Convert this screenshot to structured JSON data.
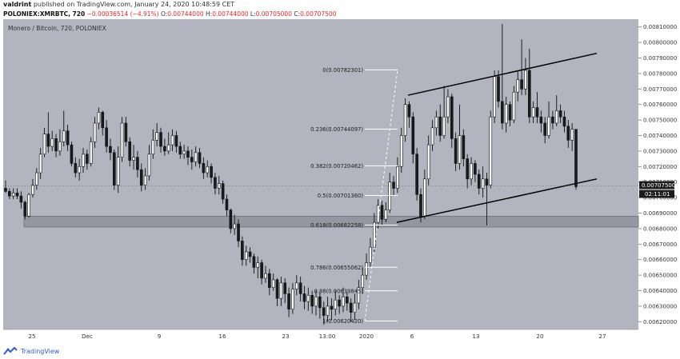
{
  "header": {
    "published": "valdrint published on TradingView.com, January 24, 2020 10:48:59 CET",
    "author": "valdrint",
    "symbol": "POLONIEX:XMRBTC, 720",
    "change": "−0.00036514 (−4.91%)",
    "o_label": "O:",
    "o_value": "0.00744000",
    "h_label": "H:",
    "h_value": "0.00744000",
    "l_label": "L:",
    "l_value": "0.00705000",
    "c_label": "C:",
    "c_value": "0.00707500"
  },
  "footer": {
    "brand": "TradingView"
  },
  "colors": {
    "background": "#b2b5bf",
    "up": "#ffffff",
    "down": "#1a1a1a",
    "zone": "#8f9199",
    "price_box": "#1c1c1c",
    "grid": "#a9acb6"
  },
  "chart_data": {
    "type": "candlestick",
    "title": "Monero / Bitcoin, 720, POLONIEX",
    "ylim": [
      0.00615,
      0.00815
    ],
    "y_ticks": [
      "0.00810000",
      "0.00800000",
      "0.00790000",
      "0.00780000",
      "0.00770000",
      "0.00760000",
      "0.00750000",
      "0.00740000",
      "0.00730000",
      "0.00720000",
      "0.00710000",
      "0.00700000",
      "0.00690000",
      "0.00680000",
      "0.00670000",
      "0.00660000",
      "0.00650000",
      "0.00640000",
      "0.00630000",
      "0.00620000"
    ],
    "x_ticks": [
      "25",
      "Dec",
      "9",
      "16",
      "23",
      "13:00",
      "2020",
      "6",
      "13",
      "20",
      "27"
    ],
    "last_price": "0.00707500",
    "countdown": "02:11:01",
    "fibonacci": [
      {
        "label": "0(0.00782301)",
        "value": 0.00782301
      },
      {
        "label": "0.236(0.00744097)",
        "value": 0.00744097
      },
      {
        "label": "0.382(0.00720462)",
        "value": 0.00720462
      },
      {
        "label": "0.5(0.00701360)",
        "value": 0.0070136
      },
      {
        "label": "0.618(0.00682258)",
        "value": 0.00682258
      },
      {
        "label": "0.786(0.00655062)",
        "value": 0.00655062
      },
      {
        "label": "0.88(0.00639845)",
        "value": 0.00639845
      },
      {
        "label": "1(0.00620420)",
        "value": 0.0062042
      }
    ],
    "support_zone": [
      0.00681,
      0.00688
    ],
    "channel_upper": [
      0.00766,
      0.00793
    ],
    "channel_lower": [
      0.00684,
      0.00712
    ],
    "candles": [
      [
        0.00706,
        0.00704,
        0.00711,
        0.00703
      ],
      [
        0.00704,
        0.00701,
        0.00706,
        0.00699
      ],
      [
        0.00701,
        0.00703,
        0.00706,
        0.00699
      ],
      [
        0.00703,
        0.00701,
        0.00706,
        0.00699
      ],
      [
        0.00701,
        0.00697,
        0.00704,
        0.00693
      ],
      [
        0.00697,
        0.00688,
        0.00698,
        0.00686
      ],
      [
        0.00688,
        0.00702,
        0.00703,
        0.00687
      ],
      [
        0.00702,
        0.00708,
        0.00712,
        0.007
      ],
      [
        0.00708,
        0.00716,
        0.00719,
        0.00705
      ],
      [
        0.00716,
        0.00728,
        0.00732,
        0.00712
      ],
      [
        0.00728,
        0.00741,
        0.00745,
        0.00726
      ],
      [
        0.00741,
        0.00733,
        0.00755,
        0.00729
      ],
      [
        0.00733,
        0.00738,
        0.00743,
        0.0073
      ],
      [
        0.00738,
        0.0073,
        0.00741,
        0.00726
      ],
      [
        0.0073,
        0.00736,
        0.00744,
        0.00727
      ],
      [
        0.00736,
        0.00743,
        0.00756,
        0.00733
      ],
      [
        0.00743,
        0.00734,
        0.00747,
        0.0073
      ],
      [
        0.00734,
        0.00722,
        0.00736,
        0.0072
      ],
      [
        0.00722,
        0.00716,
        0.00726,
        0.00713
      ],
      [
        0.00716,
        0.0072,
        0.00725,
        0.00711
      ],
      [
        0.0072,
        0.00728,
        0.00732,
        0.00716
      ],
      [
        0.00728,
        0.00722,
        0.00731,
        0.00718
      ],
      [
        0.00722,
        0.00736,
        0.00739,
        0.0072
      ],
      [
        0.00736,
        0.00748,
        0.00752,
        0.00732
      ],
      [
        0.00748,
        0.00755,
        0.00758,
        0.00744
      ],
      [
        0.00755,
        0.00745,
        0.00756,
        0.0074
      ],
      [
        0.00745,
        0.00733,
        0.0075,
        0.00729
      ],
      [
        0.00733,
        0.00729,
        0.00738,
        0.00724
      ],
      [
        0.00729,
        0.00708,
        0.00731,
        0.00705
      ],
      [
        0.00708,
        0.00726,
        0.00733,
        0.00703
      ],
      [
        0.00726,
        0.00748,
        0.00752,
        0.00723
      ],
      [
        0.00748,
        0.00736,
        0.00752,
        0.00733
      ],
      [
        0.00736,
        0.00724,
        0.00739,
        0.0072
      ],
      [
        0.00724,
        0.00726,
        0.00734,
        0.00718
      ],
      [
        0.00726,
        0.00718,
        0.0073,
        0.00713
      ],
      [
        0.00718,
        0.00708,
        0.00722,
        0.00704
      ],
      [
        0.00708,
        0.00714,
        0.00719,
        0.00705
      ],
      [
        0.00714,
        0.00728,
        0.00734,
        0.00711
      ],
      [
        0.00728,
        0.00737,
        0.00744,
        0.00725
      ],
      [
        0.00737,
        0.00742,
        0.00748,
        0.00733
      ],
      [
        0.00742,
        0.00733,
        0.00745,
        0.00729
      ],
      [
        0.00733,
        0.0073,
        0.00738,
        0.00727
      ],
      [
        0.0073,
        0.00734,
        0.00742,
        0.00728
      ],
      [
        0.00734,
        0.0074,
        0.00744,
        0.0073
      ],
      [
        0.0074,
        0.00733,
        0.00743,
        0.00729
      ],
      [
        0.00733,
        0.00728,
        0.00736,
        0.00725
      ],
      [
        0.00728,
        0.0073,
        0.00734,
        0.00725
      ],
      [
        0.0073,
        0.00726,
        0.00733,
        0.00721
      ],
      [
        0.00726,
        0.00723,
        0.00731,
        0.00718
      ],
      [
        0.00723,
        0.00729,
        0.00733,
        0.0072
      ],
      [
        0.00729,
        0.00722,
        0.00732,
        0.00719
      ],
      [
        0.00722,
        0.00716,
        0.00726,
        0.00712
      ],
      [
        0.00716,
        0.0072,
        0.00724,
        0.00713
      ],
      [
        0.0072,
        0.00713,
        0.00722,
        0.00709
      ],
      [
        0.00713,
        0.00706,
        0.00716,
        0.00702
      ],
      [
        0.00706,
        0.00709,
        0.00714,
        0.00702
      ],
      [
        0.00709,
        0.00699,
        0.00711,
        0.00696
      ],
      [
        0.00699,
        0.00692,
        0.00702,
        0.00688
      ],
      [
        0.00692,
        0.0068,
        0.00693,
        0.00677
      ],
      [
        0.0068,
        0.00683,
        0.00689,
        0.00676
      ],
      [
        0.00683,
        0.00672,
        0.00686,
        0.00668
      ],
      [
        0.00672,
        0.0066,
        0.00675,
        0.00656
      ],
      [
        0.0066,
        0.00665,
        0.00669,
        0.00656
      ],
      [
        0.00665,
        0.00662,
        0.00668,
        0.00658
      ],
      [
        0.00662,
        0.00655,
        0.00664,
        0.00651
      ],
      [
        0.00655,
        0.00658,
        0.00662,
        0.00648
      ],
      [
        0.00658,
        0.00648,
        0.0066,
        0.00644
      ],
      [
        0.00648,
        0.00651,
        0.00656,
        0.00645
      ],
      [
        0.00651,
        0.00642,
        0.00654,
        0.00637
      ],
      [
        0.00642,
        0.00647,
        0.00651,
        0.0064
      ],
      [
        0.00647,
        0.00635,
        0.00648,
        0.0063
      ],
      [
        0.00635,
        0.00645,
        0.00649,
        0.0063
      ],
      [
        0.00645,
        0.00638,
        0.00648,
        0.00632
      ],
      [
        0.00638,
        0.00628,
        0.00642,
        0.00623
      ],
      [
        0.00628,
        0.00641,
        0.00645,
        0.00625
      ],
      [
        0.00641,
        0.00645,
        0.0065,
        0.00637
      ],
      [
        0.00645,
        0.00638,
        0.00649,
        0.00633
      ],
      [
        0.00638,
        0.00633,
        0.00643,
        0.00628
      ],
      [
        0.00633,
        0.00637,
        0.00642,
        0.00627
      ],
      [
        0.00637,
        0.0063,
        0.0064,
        0.00625
      ],
      [
        0.0063,
        0.00636,
        0.0064,
        0.00624
      ],
      [
        0.00636,
        0.00629,
        0.00639,
        0.00622
      ],
      [
        0.00629,
        0.00624,
        0.00633,
        0.00618
      ],
      [
        0.00624,
        0.0063,
        0.00636,
        0.0062
      ],
      [
        0.0063,
        0.00628,
        0.00635,
        0.00621
      ],
      [
        0.00628,
        0.00634,
        0.0064,
        0.00624
      ],
      [
        0.00634,
        0.0063,
        0.00637,
        0.00625
      ],
      [
        0.0063,
        0.00636,
        0.00642,
        0.00626
      ],
      [
        0.00636,
        0.00632,
        0.00639,
        0.00627
      ],
      [
        0.00632,
        0.00626,
        0.00635,
        0.0062
      ],
      [
        0.00626,
        0.00632,
        0.00638,
        0.00621
      ],
      [
        0.00632,
        0.00642,
        0.00647,
        0.00628
      ],
      [
        0.00642,
        0.0065,
        0.00655,
        0.00638
      ],
      [
        0.0065,
        0.00658,
        0.00664,
        0.00647
      ],
      [
        0.00658,
        0.00668,
        0.00674,
        0.00655
      ],
      [
        0.00668,
        0.00684,
        0.0069,
        0.00665
      ],
      [
        0.00684,
        0.00695,
        0.00699,
        0.0068
      ],
      [
        0.00695,
        0.00686,
        0.00698,
        0.00682
      ],
      [
        0.00686,
        0.00692,
        0.00697,
        0.00684
      ],
      [
        0.00692,
        0.0071,
        0.00716,
        0.0069
      ],
      [
        0.0071,
        0.00706,
        0.00714,
        0.00701
      ],
      [
        0.00706,
        0.0072,
        0.00726,
        0.00703
      ],
      [
        0.0072,
        0.0074,
        0.00745,
        0.00716
      ],
      [
        0.0074,
        0.0076,
        0.00764,
        0.00736
      ],
      [
        0.0076,
        0.00752,
        0.00762,
        0.00745
      ],
      [
        0.00752,
        0.00728,
        0.00755,
        0.00722
      ],
      [
        0.00728,
        0.00702,
        0.00732,
        0.00698
      ],
      [
        0.00702,
        0.00688,
        0.00706,
        0.00684
      ],
      [
        0.00688,
        0.00712,
        0.00718,
        0.00686
      ],
      [
        0.00712,
        0.00734,
        0.0074,
        0.00708
      ],
      [
        0.00734,
        0.00745,
        0.0075,
        0.0073
      ],
      [
        0.00745,
        0.00752,
        0.00756,
        0.0074
      ],
      [
        0.00752,
        0.0074,
        0.0076,
        0.00736
      ],
      [
        0.0074,
        0.00752,
        0.00772,
        0.00738
      ],
      [
        0.00752,
        0.00765,
        0.0077,
        0.00748
      ],
      [
        0.00765,
        0.00738,
        0.00767,
        0.00732
      ],
      [
        0.00738,
        0.00722,
        0.00742,
        0.00717
      ],
      [
        0.00722,
        0.0074,
        0.0076,
        0.00718
      ],
      [
        0.0074,
        0.00725,
        0.00744,
        0.0072
      ],
      [
        0.00725,
        0.00712,
        0.00728,
        0.00706
      ],
      [
        0.00712,
        0.00722,
        0.00726,
        0.00708
      ],
      [
        0.00722,
        0.00715,
        0.00724,
        0.0071
      ],
      [
        0.00715,
        0.00706,
        0.00718,
        0.00702
      ],
      [
        0.00706,
        0.00712,
        0.0072,
        0.007
      ],
      [
        0.00712,
        0.00708,
        0.00716,
        0.00682
      ],
      [
        0.00708,
        0.00752,
        0.00756,
        0.00706
      ],
      [
        0.00752,
        0.00778,
        0.00782,
        0.00748
      ],
      [
        0.00778,
        0.00762,
        0.00782,
        0.00758
      ],
      [
        0.00762,
        0.00748,
        0.00812,
        0.00744
      ],
      [
        0.00748,
        0.0076,
        0.00765,
        0.00742
      ],
      [
        0.0076,
        0.0075,
        0.00762,
        0.00746
      ],
      [
        0.0075,
        0.00768,
        0.00772,
        0.00748
      ],
      [
        0.00768,
        0.00776,
        0.00782,
        0.00762
      ],
      [
        0.00776,
        0.0077,
        0.00802,
        0.00766
      ],
      [
        0.0077,
        0.00782,
        0.0079,
        0.00766
      ],
      [
        0.00782,
        0.00752,
        0.00796,
        0.00748
      ],
      [
        0.00752,
        0.00758,
        0.00762,
        0.00748
      ],
      [
        0.00758,
        0.00752,
        0.00768,
        0.00748
      ],
      [
        0.00752,
        0.00748,
        0.00756,
        0.00742
      ],
      [
        0.00748,
        0.0074,
        0.00752,
        0.00735
      ],
      [
        0.0074,
        0.00752,
        0.00762,
        0.00738
      ],
      [
        0.00752,
        0.00748,
        0.00756,
        0.00744
      ],
      [
        0.00748,
        0.00756,
        0.00766,
        0.00746
      ],
      [
        0.00756,
        0.00752,
        0.0076,
        0.00748
      ],
      [
        0.00752,
        0.00746,
        0.00756,
        0.00742
      ],
      [
        0.00746,
        0.00737,
        0.0075,
        0.00732
      ],
      [
        0.00737,
        0.00744,
        0.00748,
        0.0073
      ],
      [
        0.00744,
        0.00707,
        0.00744,
        0.00705
      ]
    ]
  }
}
